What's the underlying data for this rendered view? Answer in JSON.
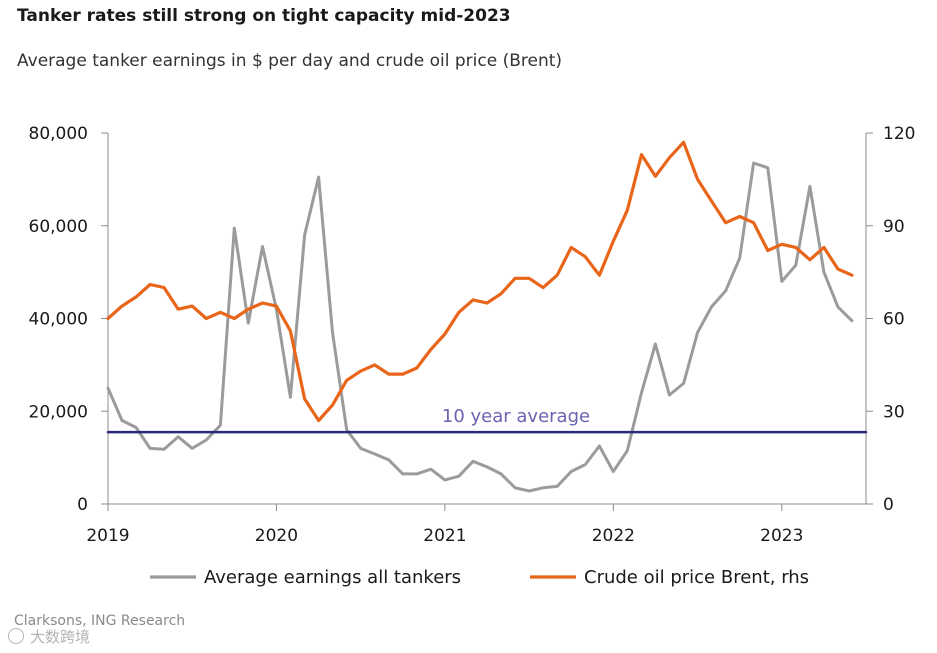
{
  "chart_data": {
    "type": "line",
    "title": "Tanker rates still strong on tight capacity mid-2023",
    "subtitle": "Average tanker earnings in $ per day and crude oil price (Brent)",
    "x_ticks": [
      "2019",
      "2020",
      "2021",
      "2022",
      "2023"
    ],
    "x_range": [
      2019.0,
      2023.5
    ],
    "y_left": {
      "range": [
        0,
        80000
      ],
      "ticks": [
        0,
        20000,
        40000,
        60000,
        80000
      ],
      "tick_labels": [
        "0",
        "20,000",
        "40,000",
        "60,000",
        "80,000"
      ]
    },
    "y_right": {
      "range": [
        0,
        120
      ],
      "ticks": [
        0,
        30,
        60,
        90,
        120
      ],
      "tick_labels": [
        "0",
        "30",
        "60",
        "90",
        "120"
      ]
    },
    "grid": false,
    "legend_position": "bottom",
    "series": [
      {
        "name": "Average earnings all tankers",
        "axis": "left",
        "color": "#9b9b9b",
        "x": [
          2019.0,
          2019.083,
          2019.167,
          2019.25,
          2019.333,
          2019.417,
          2019.5,
          2019.583,
          2019.667,
          2019.75,
          2019.833,
          2019.917,
          2020.0,
          2020.083,
          2020.167,
          2020.25,
          2020.333,
          2020.417,
          2020.5,
          2020.583,
          2020.667,
          2020.75,
          2020.833,
          2020.917,
          2021.0,
          2021.083,
          2021.167,
          2021.25,
          2021.333,
          2021.417,
          2021.5,
          2021.583,
          2021.667,
          2021.75,
          2021.833,
          2021.917,
          2022.0,
          2022.083,
          2022.167,
          2022.25,
          2022.333,
          2022.417,
          2022.5,
          2022.583,
          2022.667,
          2022.75,
          2022.833,
          2022.917,
          2023.0,
          2023.083,
          2023.167,
          2023.25,
          2023.333,
          2023.417
        ],
        "values": [
          25000,
          18000,
          16500,
          12000,
          11800,
          14500,
          12000,
          13800,
          17000,
          59500,
          39000,
          55500,
          42000,
          23000,
          58000,
          70500,
          37000,
          16000,
          12000,
          10800,
          9500,
          6500,
          6500,
          7500,
          5200,
          6000,
          9200,
          8000,
          6500,
          3500,
          2800,
          3500,
          3800,
          7000,
          8500,
          12500,
          7000,
          11500,
          24000,
          34500,
          23500,
          26000,
          37000,
          42500,
          46000,
          53000,
          73500,
          72500,
          48000,
          51500,
          68500,
          50000,
          42500,
          39500
        ]
      },
      {
        "name": "Crude oil price Brent, rhs",
        "axis": "right",
        "color": "#e8651a",
        "x": [
          2019.0,
          2019.083,
          2019.167,
          2019.25,
          2019.333,
          2019.417,
          2019.5,
          2019.583,
          2019.667,
          2019.75,
          2019.833,
          2019.917,
          2020.0,
          2020.083,
          2020.167,
          2020.25,
          2020.333,
          2020.417,
          2020.5,
          2020.583,
          2020.667,
          2020.75,
          2020.833,
          2020.917,
          2021.0,
          2021.083,
          2021.167,
          2021.25,
          2021.333,
          2021.417,
          2021.5,
          2021.583,
          2021.667,
          2021.75,
          2021.833,
          2021.917,
          2022.0,
          2022.083,
          2022.167,
          2022.25,
          2022.333,
          2022.417,
          2022.5,
          2022.583,
          2022.667,
          2022.75,
          2022.833,
          2022.917,
          2023.0,
          2023.083,
          2023.167,
          2023.25,
          2023.333,
          2023.417
        ],
        "values": [
          60,
          64,
          67,
          71,
          70,
          63,
          64,
          60,
          62,
          60,
          63,
          65,
          64,
          56,
          34,
          27,
          32,
          40,
          43,
          45,
          42,
          42,
          44,
          50,
          55,
          62,
          66,
          65,
          68,
          73,
          73,
          70,
          74,
          83,
          80,
          74,
          85,
          95,
          113,
          106,
          112,
          117,
          105,
          98,
          91,
          93,
          91,
          82,
          84,
          83,
          79,
          83,
          76,
          74
        ]
      },
      {
        "name": "10 year average",
        "axis": "left",
        "color": "#2a2a7c",
        "x": [
          2019.0,
          2023.5
        ],
        "values": [
          15500,
          15500
        ]
      }
    ],
    "annotations": [
      {
        "text": "10 year average",
        "color": "#6a63b0"
      }
    ],
    "legend": [
      {
        "label": "Average earnings all tankers",
        "color": "#9b9b9b"
      },
      {
        "label": "Crude oil price Brent, rhs",
        "color": "#e8651a"
      }
    ]
  },
  "footer": {
    "source": "Clarksons, ING Research",
    "watermark": "大数跨境"
  }
}
